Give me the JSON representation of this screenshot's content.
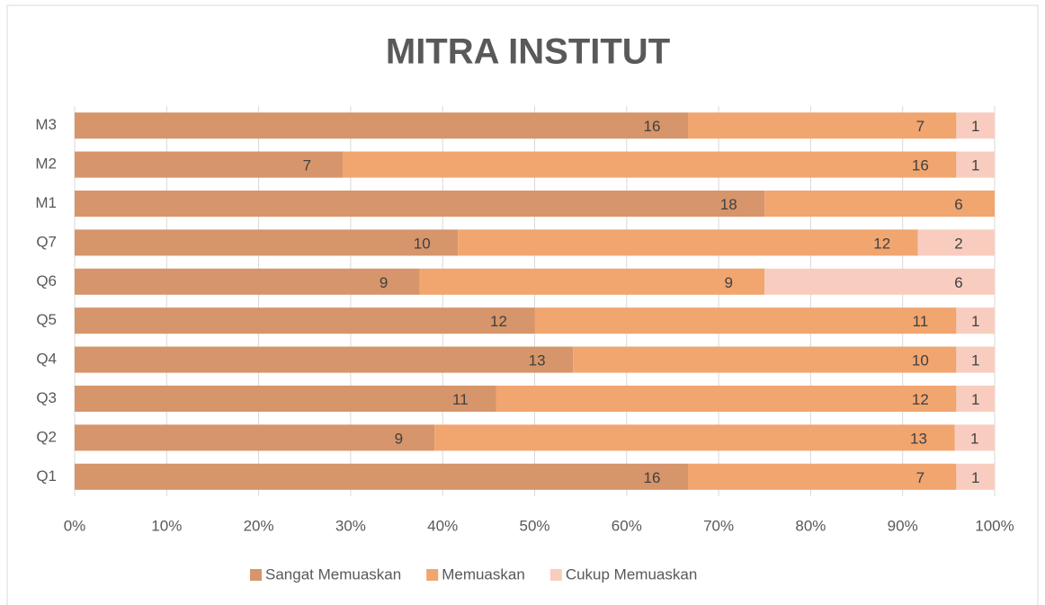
{
  "chart_data": {
    "type": "bar",
    "orientation": "horizontal",
    "stack": "percent",
    "title": "MITRA INSTITUT",
    "categories": [
      "Q1",
      "Q2",
      "Q3",
      "Q4",
      "Q5",
      "Q6",
      "Q7",
      "M1",
      "M2",
      "M3"
    ],
    "series": [
      {
        "name": "Sangat Memuaskan",
        "color": "#d6956a",
        "values": [
          16,
          9,
          11,
          13,
          12,
          9,
          10,
          18,
          7,
          16
        ]
      },
      {
        "name": "Memuaskan",
        "color": "#f1a56f",
        "values": [
          7,
          13,
          12,
          10,
          11,
          9,
          12,
          6,
          16,
          7
        ]
      },
      {
        "name": "Cukup Memuaskan",
        "color": "#f8cdbf",
        "values": [
          1,
          1,
          1,
          1,
          1,
          6,
          2,
          null,
          1,
          1
        ]
      }
    ],
    "xlim": [
      0,
      100
    ],
    "xticks": [
      {
        "value": 0,
        "label": "0%"
      },
      {
        "value": 10,
        "label": "10%"
      },
      {
        "value": 20,
        "label": "20%"
      },
      {
        "value": 30,
        "label": "30%"
      },
      {
        "value": 40,
        "label": "40%"
      },
      {
        "value": 50,
        "label": "50%"
      },
      {
        "value": 60,
        "label": "60%"
      },
      {
        "value": 70,
        "label": "70%"
      },
      {
        "value": 80,
        "label": "80%"
      },
      {
        "value": 90,
        "label": "90%"
      },
      {
        "value": 100,
        "label": "100%"
      }
    ],
    "grid": true,
    "legend": "bottom"
  }
}
